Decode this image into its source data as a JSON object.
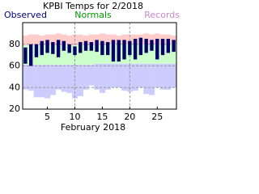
{
  "chart_data": {
    "type": "range-bar",
    "title": "KPBI Temps for 2/2018",
    "x_label": "February 2018",
    "x": [
      1,
      2,
      3,
      4,
      5,
      6,
      7,
      8,
      9,
      10,
      11,
      12,
      13,
      14,
      15,
      16,
      17,
      18,
      19,
      20,
      21,
      22,
      23,
      24,
      25,
      26,
      27,
      28
    ],
    "xlim": [
      0.5,
      28.5
    ],
    "xticks": [
      5,
      10,
      15,
      20,
      25
    ],
    "xgrid": [
      10,
      20
    ],
    "ylim": [
      20,
      100
    ],
    "yticks": [
      20,
      40,
      60,
      80
    ],
    "grid": true,
    "series": [
      {
        "name": "Observed",
        "color": "#000066",
        "legend_color": "#000080",
        "high": [
          77,
          80,
          80,
          83,
          84,
          82,
          84,
          83,
          80,
          78,
          82,
          83,
          82,
          84,
          83,
          82,
          84,
          84,
          84,
          83,
          85,
          86,
          85,
          84,
          85,
          85,
          85,
          84
        ],
        "low": [
          62,
          60,
          68,
          70,
          72,
          71,
          68,
          74,
          72,
          70,
          72,
          74,
          74,
          73,
          70,
          70,
          64,
          64,
          66,
          70,
          66,
          70,
          72,
          74,
          66,
          70,
          72,
          73
        ]
      },
      {
        "name": "Normals",
        "color": "#ccffcc",
        "legend_color": "#009900",
        "high": [
          79,
          79,
          79,
          79,
          79,
          79,
          79,
          79,
          79,
          79,
          79,
          79,
          79,
          79,
          79,
          80,
          80,
          80,
          80,
          80,
          80,
          80,
          80,
          80,
          80,
          80,
          80,
          80
        ],
        "low": [
          61,
          61,
          61,
          61,
          61,
          61,
          61,
          61,
          61,
          61,
          61,
          61,
          61,
          62,
          62,
          62,
          62,
          62,
          62,
          62,
          62,
          62,
          62,
          62,
          62,
          62,
          62,
          62
        ]
      },
      {
        "name": "Records",
        "color": "#ffcccc",
        "low_color": "#ccccff",
        "legend_color": "#cc88cc",
        "high": [
          88,
          89,
          89,
          88,
          89,
          89,
          90,
          89,
          88,
          89,
          89,
          88,
          89,
          89,
          90,
          89,
          89,
          88,
          89,
          89,
          89,
          89,
          90,
          89,
          90,
          89,
          89,
          88
        ],
        "low": [
          38,
          37,
          31,
          31,
          30,
          33,
          38,
          36,
          35,
          30,
          32,
          38,
          42,
          38,
          35,
          38,
          40,
          40,
          37,
          36,
          37,
          40,
          34,
          33,
          40,
          38,
          38,
          40
        ]
      }
    ]
  }
}
